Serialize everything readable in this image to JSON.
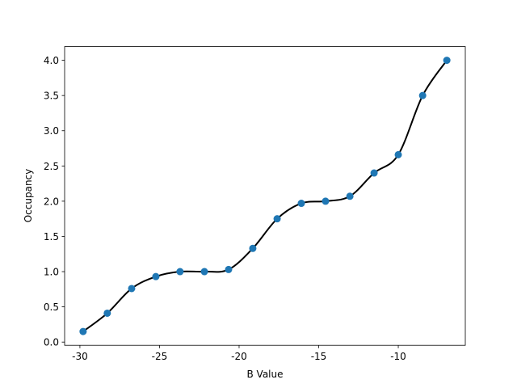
{
  "chart_data": {
    "type": "line",
    "xlabel": "B Value",
    "ylabel": "Occupancy",
    "x": [
      -29.8,
      -28.28,
      -26.75,
      -25.23,
      -23.71,
      -22.18,
      -20.66,
      -19.14,
      -17.61,
      -16.09,
      -14.57,
      -13.04,
      -11.52,
      -10.0,
      -8.47,
      -6.95
    ],
    "values": [
      0.15,
      0.41,
      0.76,
      0.93,
      1.0,
      1.0,
      1.03,
      1.33,
      1.75,
      1.97,
      2.0,
      2.07,
      2.4,
      2.66,
      3.5,
      4.0
    ],
    "color": "#1f77b4",
    "line_color": "#000000",
    "markers": true,
    "smooth": true,
    "xlim": [
      -30.96,
      -5.79
    ],
    "xticks": [
      -30,
      -25,
      -20,
      -15,
      -10
    ],
    "ylim": [
      -0.046,
      4.195
    ],
    "yticks": [
      {
        "value": 0,
        "label": "0.0"
      },
      {
        "value": 0.5,
        "label": "0.5"
      },
      {
        "value": 1,
        "label": "1.0"
      },
      {
        "value": 1.5,
        "label": "1.5"
      },
      {
        "value": 2,
        "label": "2.0"
      },
      {
        "value": 2.5,
        "label": "2.5"
      },
      {
        "value": 3,
        "label": "3.0"
      },
      {
        "value": 3.5,
        "label": "3.5"
      },
      {
        "value": 4,
        "label": "4.0"
      }
    ],
    "grid": false
  }
}
